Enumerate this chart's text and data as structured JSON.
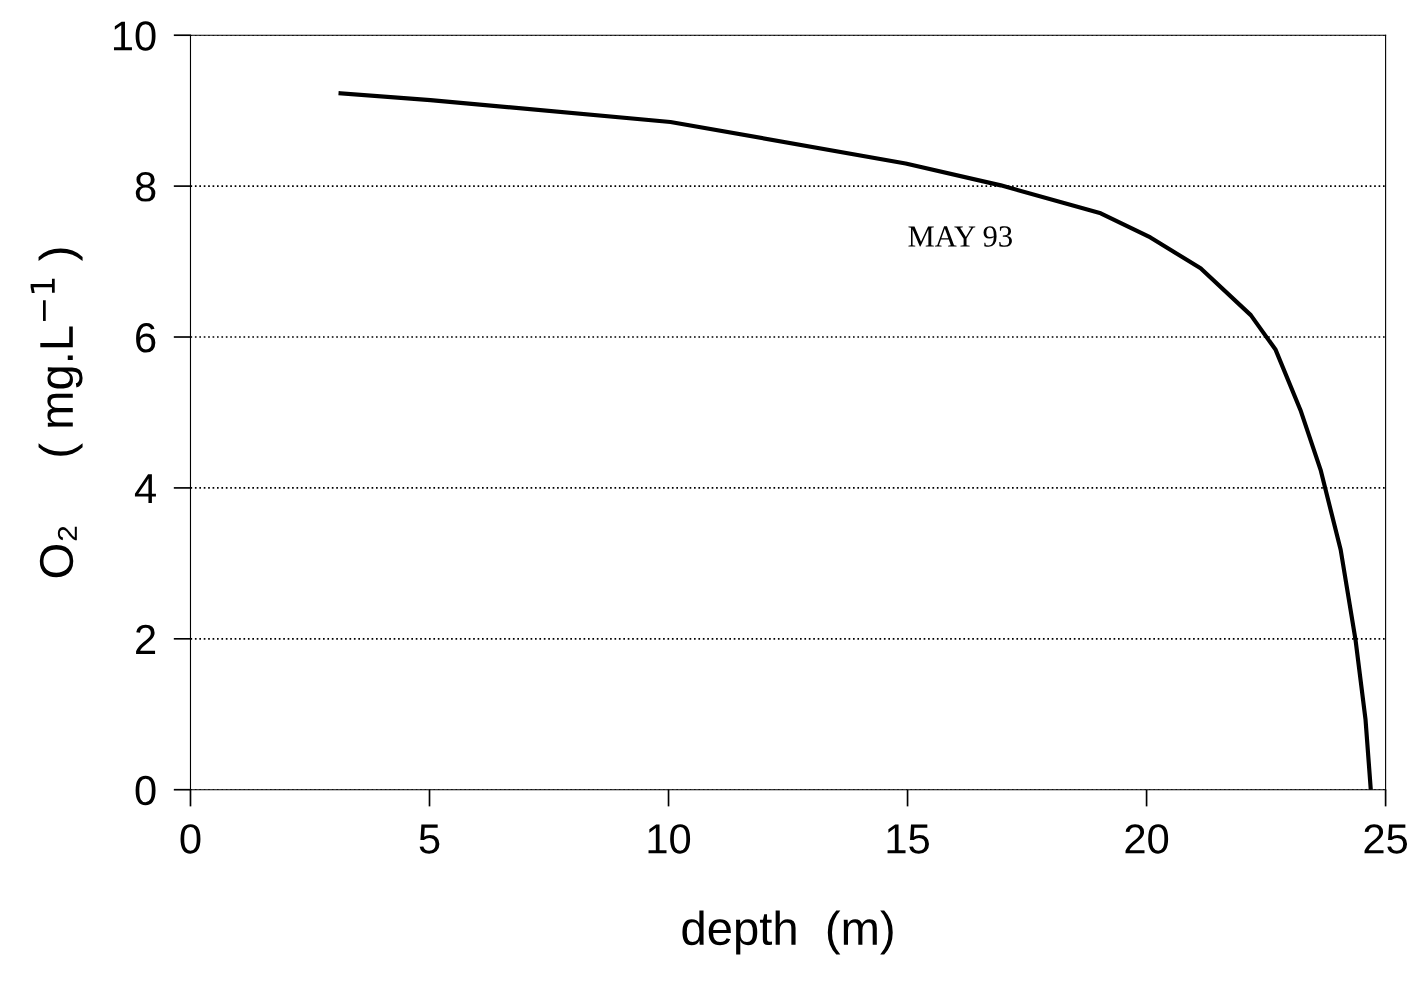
{
  "chart_data": {
    "type": "line",
    "xlabel": "depth  (m)",
    "ylabel": "O₂     ( mg.L$^{−1}$ )",
    "annotations": [
      "MAY 93"
    ],
    "series": [
      {
        "color": "#000000",
        "x": [
          3.14,
          5.02,
          10.04,
          14.96,
          16.95,
          19.04,
          20.08,
          21.13,
          22.18,
          22.7,
          23.22,
          23.64,
          24.06,
          24.37,
          24.58,
          24.69
        ],
        "values": [
          9.23,
          9.14,
          8.85,
          8.3,
          8.01,
          7.64,
          7.32,
          6.91,
          6.29,
          5.83,
          5.03,
          4.24,
          3.18,
          1.99,
          0.93,
          0
        ]
      }
    ],
    "xlim": [
      0,
      25
    ],
    "xticks": [
      0,
      5,
      10,
      15,
      20,
      25
    ],
    "ylim": [
      0,
      10
    ],
    "yticks": [
      0,
      2,
      4,
      6,
      8,
      10
    ],
    "grid": "y",
    "marker": "none",
    "line_style": "solid"
  }
}
